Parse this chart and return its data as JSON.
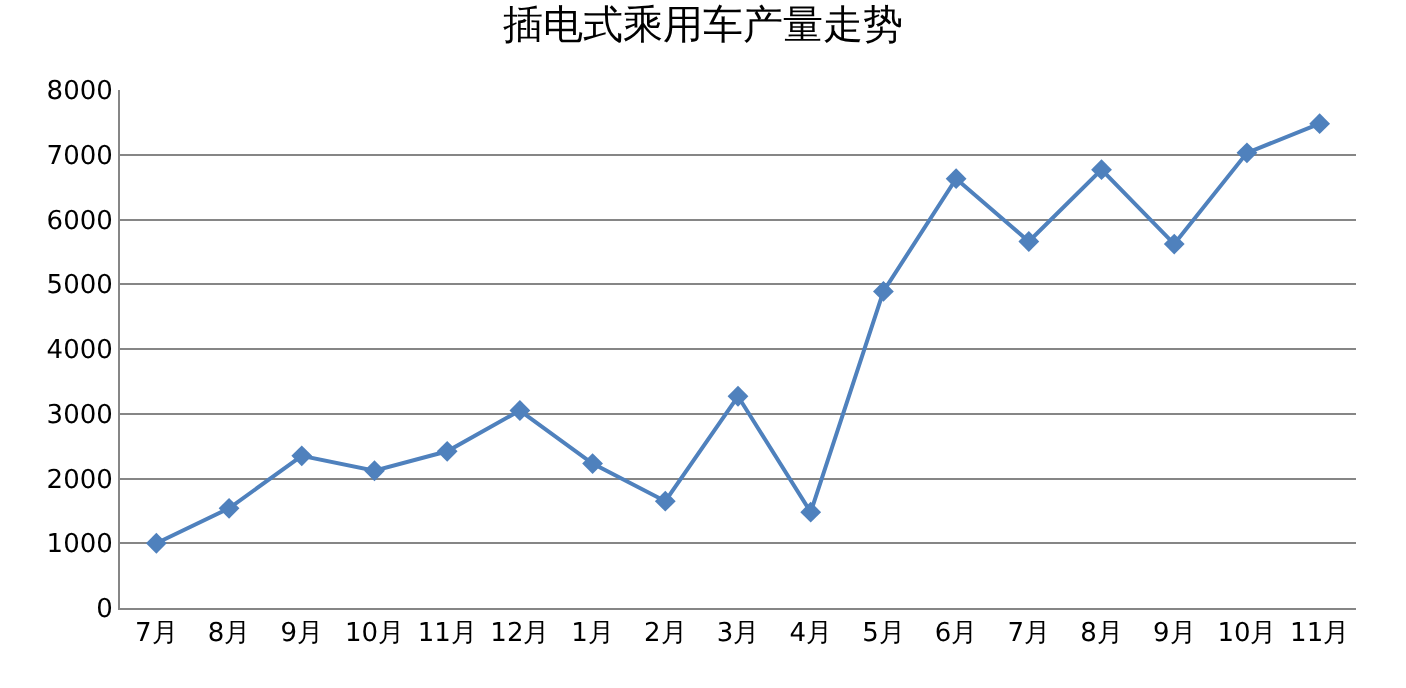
{
  "chart_data": {
    "type": "line",
    "title": "插电式乘用车产量走势",
    "categories": [
      "7月",
      "8月",
      "9月",
      "10月",
      "11月",
      "12月",
      "1月",
      "2月",
      "3月",
      "4月",
      "5月",
      "6月",
      "7月",
      "8月",
      "9月",
      "10月",
      "11月"
    ],
    "series": [
      {
        "color": "#4f81bd",
        "values": [
          1000,
          1540,
          2350,
          2120,
          2420,
          3050,
          2230,
          1650,
          3270,
          1480,
          4890,
          6630,
          5660,
          6770,
          5620,
          7030,
          7480
        ]
      }
    ],
    "ylim": [
      0,
      8000
    ],
    "yticks": [
      0,
      1000,
      2000,
      3000,
      4000,
      5000,
      6000,
      7000,
      8000
    ],
    "grid": "y",
    "marker": "diamond",
    "line_style": "solid",
    "legend": false
  }
}
